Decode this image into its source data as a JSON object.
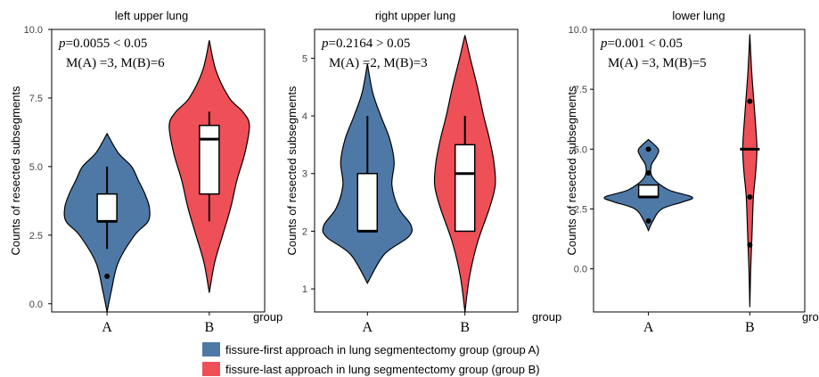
{
  "colors": {
    "group_a": "#4e79a7",
    "group_b": "#ef4f57",
    "box": "#ffffff",
    "line": "#000000"
  },
  "shared": {
    "ylabel": "Counts of resected subsegments",
    "xlabel": "group"
  },
  "chart_data": [
    {
      "type": "violin",
      "title": "left upper lung",
      "annotation": {
        "p": "p",
        "p_text": "=0.0055 < 0.05",
        "median_text": "M(A) =3, M(B)=6"
      },
      "categories": [
        "A",
        "B"
      ],
      "ylim": [
        -0.3,
        10.0
      ],
      "yticks": [
        0.0,
        2.5,
        5.0,
        7.5,
        10.0
      ],
      "ytick_labels": [
        "0.0",
        "2.5",
        "5.0",
        "7.5",
        "10.0"
      ],
      "groups": [
        {
          "name": "A",
          "box": {
            "min": 2,
            "q1": 3,
            "median": 3,
            "q3": 4,
            "max": 5
          },
          "outliers": [
            1
          ],
          "violin_y": [
            -0.3,
            0.5,
            1.5,
            2.5,
            3.0,
            3.5,
            4.0,
            4.5,
            5.0,
            5.5,
            6.2
          ],
          "violin_w": [
            0.0,
            0.1,
            0.25,
            0.62,
            0.92,
            0.95,
            0.85,
            0.7,
            0.55,
            0.25,
            0.0
          ]
        },
        {
          "name": "B",
          "box": {
            "min": 3,
            "q1": 4,
            "median": 6,
            "q3": 6.5,
            "max": 7
          },
          "outliers": [],
          "violin_y": [
            0.4,
            1.5,
            2.5,
            3.5,
            4.5,
            5.5,
            6.5,
            7.0,
            7.5,
            8.5,
            9.6
          ],
          "violin_w": [
            0.0,
            0.12,
            0.3,
            0.48,
            0.62,
            0.8,
            0.9,
            0.75,
            0.45,
            0.15,
            0.0
          ]
        }
      ]
    },
    {
      "type": "violin",
      "title": "right upper lung",
      "annotation": {
        "p": "p",
        "p_text": "=0.2164 > 0.05",
        "median_text": "M(A) =2, M(B)=3"
      },
      "categories": [
        "A",
        "B"
      ],
      "ylim": [
        0.6,
        5.5
      ],
      "yticks": [
        1,
        2,
        3,
        4,
        5
      ],
      "ytick_labels": [
        "1",
        "2",
        "3",
        "4",
        "5"
      ],
      "groups": [
        {
          "name": "A",
          "box": {
            "min": 2,
            "q1": 2,
            "median": 2,
            "q3": 3,
            "max": 4
          },
          "outliers": [],
          "violin_y": [
            1.1,
            1.6,
            1.9,
            2.1,
            2.4,
            2.8,
            3.2,
            3.6,
            4.0,
            4.4,
            4.9
          ],
          "violin_w": [
            0.0,
            0.38,
            0.92,
            0.98,
            0.7,
            0.55,
            0.6,
            0.5,
            0.3,
            0.12,
            0.0
          ]
        },
        {
          "name": "B",
          "box": {
            "min": 2,
            "q1": 2,
            "median": 3,
            "q3": 3.5,
            "max": 4
          },
          "outliers": [],
          "violin_y": [
            0.6,
            1.2,
            1.8,
            2.4,
            2.8,
            3.2,
            3.6,
            4.0,
            4.5,
            5.0,
            5.4
          ],
          "violin_w": [
            0.0,
            0.1,
            0.28,
            0.55,
            0.68,
            0.65,
            0.55,
            0.42,
            0.28,
            0.12,
            0.0
          ]
        }
      ]
    },
    {
      "type": "violin",
      "title": "lower lung",
      "annotation": {
        "p": "p",
        "p_text": "=0.001 < 0.05",
        "median_text": "M(A) =3, M(B)=5"
      },
      "categories": [
        "A",
        "B"
      ],
      "ylim": [
        -1.8,
        10.0
      ],
      "yticks": [
        0.0,
        2.5,
        5.0,
        7.5,
        10.0
      ],
      "ytick_labels": [
        "0.0",
        "2.5",
        "5.0",
        "7.5",
        "10.0"
      ],
      "groups": [
        {
          "name": "A",
          "box": {
            "min": 3,
            "q1": 3,
            "median": 3,
            "q3": 3.5,
            "max": 3.5
          },
          "outliers": [
            2,
            4,
            5
          ],
          "violin_y": [
            1.6,
            2.0,
            2.5,
            2.8,
            3.0,
            3.3,
            3.8,
            4.3,
            4.7,
            5.0,
            5.4
          ],
          "violin_w": [
            0.0,
            0.1,
            0.3,
            0.78,
            0.98,
            0.45,
            0.1,
            0.06,
            0.18,
            0.22,
            0.0
          ]
        },
        {
          "name": "B",
          "box": {
            "min": 5,
            "q1": 5,
            "median": 5,
            "q3": 5,
            "max": 5
          },
          "outliers": [
            1,
            3,
            7
          ],
          "violin_y": [
            -1.6,
            0.0,
            1.5,
            3.0,
            4.0,
            5.0,
            6.0,
            7.0,
            8.0,
            9.0,
            9.8
          ],
          "violin_w": [
            0.0,
            0.02,
            0.05,
            0.08,
            0.13,
            0.16,
            0.13,
            0.09,
            0.05,
            0.02,
            0.0
          ]
        }
      ]
    }
  ],
  "legend": [
    {
      "label": "fissure-first approach in lung segmentectomy group (group A)",
      "color": "#4e79a7"
    },
    {
      "label": "fissure-last approach in lung segmentectomy group (group B)",
      "color": "#ef4f57"
    }
  ]
}
